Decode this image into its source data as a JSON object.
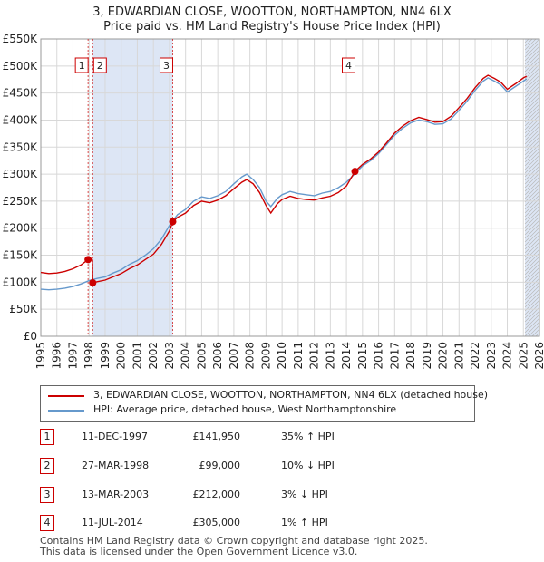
{
  "title_line1": "3, EDWARDIAN CLOSE, WOOTTON, NORTHAMPTON, NN4 6LX",
  "title_line2": "Price paid vs. HM Land Registry's House Price Index (HPI)",
  "legend": {
    "property_label": "3, EDWARDIAN CLOSE, WOOTTON, NORTHAMPTON, NN4 6LX (detached house)",
    "hpi_label": "HPI: Average price, detached house, West Northamptonshire"
  },
  "colors": {
    "property": "#cc0000",
    "hpi": "#6699cc",
    "shade": "#dde6f5",
    "grid": "#d8d8d8"
  },
  "transactions": [
    {
      "num": "1",
      "date": "11-DEC-1997",
      "price": "£141,950",
      "hpi": "35% ↑ HPI"
    },
    {
      "num": "2",
      "date": "27-MAR-1998",
      "price": "£99,000",
      "hpi": "10% ↓ HPI"
    },
    {
      "num": "3",
      "date": "13-MAR-2003",
      "price": "£212,000",
      "hpi": "3% ↓ HPI"
    },
    {
      "num": "4",
      "date": "11-JUL-2014",
      "price": "£305,000",
      "hpi": "1% ↑ HPI"
    }
  ],
  "footer": {
    "line1": "Contains HM Land Registry data © Crown copyright and database right 2025.",
    "line2": "This data is licensed under the Open Government Licence v3.0."
  },
  "chart_data": {
    "type": "line",
    "title": "3, EDWARDIAN CLOSE, WOOTTON, NORTHAMPTON, NN4 6LX",
    "subtitle": "Price paid vs. HM Land Registry's House Price Index (HPI)",
    "xlim": [
      1995,
      2026
    ],
    "ylim": [
      0,
      550000
    ],
    "x_ticks": [
      "1995",
      "1996",
      "1997",
      "1998",
      "1999",
      "2000",
      "2001",
      "2002",
      "2003",
      "2004",
      "2005",
      "2006",
      "2007",
      "2008",
      "2009",
      "2010",
      "2011",
      "2012",
      "2013",
      "2014",
      "2015",
      "2016",
      "2017",
      "2018",
      "2019",
      "2020",
      "2021",
      "2022",
      "2023",
      "2024",
      "2025",
      "2026"
    ],
    "y_ticks": [
      {
        "v": 0,
        "label": "£0"
      },
      {
        "v": 50000,
        "label": "£50K"
      },
      {
        "v": 100000,
        "label": "£100K"
      },
      {
        "v": 150000,
        "label": "£150K"
      },
      {
        "v": 200000,
        "label": "£200K"
      },
      {
        "v": 250000,
        "label": "£250K"
      },
      {
        "v": 300000,
        "label": "£300K"
      },
      {
        "v": 350000,
        "label": "£350K"
      },
      {
        "v": 400000,
        "label": "£400K"
      },
      {
        "v": 450000,
        "label": "£450K"
      },
      {
        "v": 500000,
        "label": "£500K"
      },
      {
        "v": 550000,
        "label": "£550K"
      }
    ],
    "shaded_ranges": [
      [
        1998.23,
        2003.2
      ],
      [
        2025.1,
        2026
      ]
    ],
    "sales": [
      {
        "label": "1",
        "x": 1997.94,
        "y": 141950
      },
      {
        "label": "2",
        "x": 1998.23,
        "y": 99000
      },
      {
        "label": "3",
        "x": 2003.2,
        "y": 212000
      },
      {
        "label": "4",
        "x": 2014.53,
        "y": 305000
      }
    ],
    "series": [
      {
        "name": "HPI: Average price, detached house, West Northamptonshire",
        "points": [
          [
            1995,
            87000
          ],
          [
            1995.5,
            86000
          ],
          [
            1996,
            87000
          ],
          [
            1996.5,
            89000
          ],
          [
            1997,
            92000
          ],
          [
            1997.5,
            97000
          ],
          [
            1998,
            103000
          ],
          [
            1998.5,
            107000
          ],
          [
            1999,
            110000
          ],
          [
            1999.5,
            117000
          ],
          [
            2000,
            123000
          ],
          [
            2000.5,
            133000
          ],
          [
            2001,
            140000
          ],
          [
            2001.5,
            150000
          ],
          [
            2002,
            162000
          ],
          [
            2002.5,
            180000
          ],
          [
            2003,
            205000
          ],
          [
            2003.5,
            225000
          ],
          [
            2004,
            235000
          ],
          [
            2004.5,
            250000
          ],
          [
            2005,
            258000
          ],
          [
            2005.5,
            255000
          ],
          [
            2006,
            260000
          ],
          [
            2006.5,
            268000
          ],
          [
            2007,
            282000
          ],
          [
            2007.5,
            295000
          ],
          [
            2007.8,
            300000
          ],
          [
            2008.2,
            290000
          ],
          [
            2008.6,
            275000
          ],
          [
            2009,
            250000
          ],
          [
            2009.3,
            240000
          ],
          [
            2009.7,
            255000
          ],
          [
            2010,
            262000
          ],
          [
            2010.5,
            268000
          ],
          [
            2011,
            264000
          ],
          [
            2011.5,
            262000
          ],
          [
            2012,
            260000
          ],
          [
            2012.5,
            265000
          ],
          [
            2013,
            268000
          ],
          [
            2013.5,
            275000
          ],
          [
            2014,
            285000
          ],
          [
            2014.5,
            300000
          ],
          [
            2015,
            315000
          ],
          [
            2015.5,
            325000
          ],
          [
            2016,
            338000
          ],
          [
            2016.5,
            355000
          ],
          [
            2017,
            372000
          ],
          [
            2017.5,
            385000
          ],
          [
            2018,
            395000
          ],
          [
            2018.5,
            400000
          ],
          [
            2019,
            397000
          ],
          [
            2019.5,
            392000
          ],
          [
            2020,
            393000
          ],
          [
            2020.5,
            402000
          ],
          [
            2021,
            418000
          ],
          [
            2021.5,
            435000
          ],
          [
            2022,
            455000
          ],
          [
            2022.5,
            472000
          ],
          [
            2022.8,
            478000
          ],
          [
            2023.2,
            472000
          ],
          [
            2023.6,
            465000
          ],
          [
            2024,
            452000
          ],
          [
            2024.5,
            462000
          ],
          [
            2025,
            472000
          ],
          [
            2025.2,
            476000
          ]
        ]
      },
      {
        "name": "3, EDWARDIAN CLOSE, WOOTTON, NORTHAMPTON, NN4 6LX (detached house)",
        "points": [
          [
            1995,
            118000
          ],
          [
            1995.5,
            116000
          ],
          [
            1996,
            117000
          ],
          [
            1996.5,
            120000
          ],
          [
            1997,
            125000
          ],
          [
            1997.5,
            132000
          ],
          [
            1997.94,
            141950
          ],
          [
            1998.2,
            141950
          ],
          [
            1998.23,
            99000
          ],
          [
            1998.5,
            101000
          ],
          [
            1999,
            104000
          ],
          [
            1999.5,
            110000
          ],
          [
            2000,
            116000
          ],
          [
            2000.5,
            125000
          ],
          [
            2001,
            132000
          ],
          [
            2001.5,
            142000
          ],
          [
            2002,
            152000
          ],
          [
            2002.5,
            170000
          ],
          [
            2003,
            195000
          ],
          [
            2003.2,
            212000
          ],
          [
            2003.5,
            220000
          ],
          [
            2004,
            228000
          ],
          [
            2004.5,
            242000
          ],
          [
            2005,
            250000
          ],
          [
            2005.5,
            247000
          ],
          [
            2006,
            252000
          ],
          [
            2006.5,
            260000
          ],
          [
            2007,
            273000
          ],
          [
            2007.5,
            285000
          ],
          [
            2007.8,
            290000
          ],
          [
            2008.2,
            282000
          ],
          [
            2008.6,
            266000
          ],
          [
            2009,
            242000
          ],
          [
            2009.3,
            228000
          ],
          [
            2009.7,
            245000
          ],
          [
            2010,
            253000
          ],
          [
            2010.5,
            259000
          ],
          [
            2011,
            255000
          ],
          [
            2011.5,
            253000
          ],
          [
            2012,
            252000
          ],
          [
            2012.5,
            256000
          ],
          [
            2013,
            259000
          ],
          [
            2013.5,
            266000
          ],
          [
            2014,
            278000
          ],
          [
            2014.53,
            305000
          ],
          [
            2015,
            318000
          ],
          [
            2015.5,
            328000
          ],
          [
            2016,
            341000
          ],
          [
            2016.5,
            358000
          ],
          [
            2017,
            376000
          ],
          [
            2017.5,
            389000
          ],
          [
            2018,
            399000
          ],
          [
            2018.5,
            405000
          ],
          [
            2019,
            401000
          ],
          [
            2019.5,
            396000
          ],
          [
            2020,
            397000
          ],
          [
            2020.5,
            407000
          ],
          [
            2021,
            423000
          ],
          [
            2021.5,
            440000
          ],
          [
            2022,
            460000
          ],
          [
            2022.5,
            477000
          ],
          [
            2022.8,
            483000
          ],
          [
            2023.2,
            477000
          ],
          [
            2023.6,
            470000
          ],
          [
            2024,
            457000
          ],
          [
            2024.5,
            467000
          ],
          [
            2025,
            478000
          ],
          [
            2025.2,
            481000
          ]
        ]
      }
    ]
  }
}
